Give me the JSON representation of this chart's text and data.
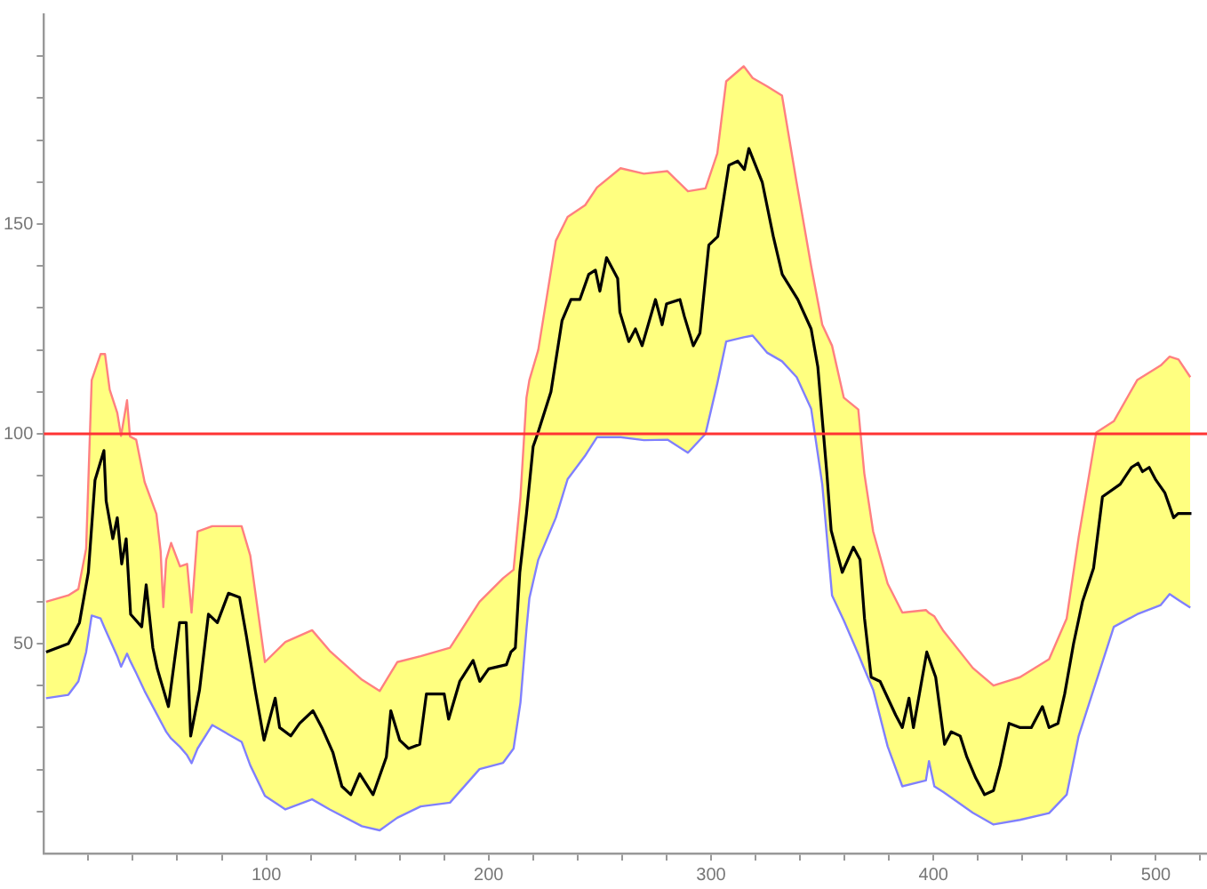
{
  "chart_data": {
    "type": "line",
    "xlim": [
      0,
      523
    ],
    "ylim": [
      0,
      200
    ],
    "xticks": [
      {
        "value": 20,
        "label": null
      },
      {
        "value": 40,
        "label": null
      },
      {
        "value": 60,
        "label": null
      },
      {
        "value": 80,
        "label": null
      },
      100,
      {
        "value": 120,
        "label": null
      },
      {
        "value": 140,
        "label": null
      },
      {
        "value": 160,
        "label": null
      },
      {
        "value": 180,
        "label": null
      },
      200,
      {
        "value": 220,
        "label": null
      },
      {
        "value": 240,
        "label": null
      },
      {
        "value": 260,
        "label": null
      },
      {
        "value": 280,
        "label": null
      },
      300,
      {
        "value": 320,
        "label": null
      },
      {
        "value": 340,
        "label": null
      },
      {
        "value": 360,
        "label": null
      },
      {
        "value": 380,
        "label": null
      },
      400,
      {
        "value": 420,
        "label": null
      },
      {
        "value": 440,
        "label": null
      },
      {
        "value": 460,
        "label": null
      },
      {
        "value": 480,
        "label": null
      },
      500,
      {
        "value": 520,
        "label": null
      }
    ],
    "yticks": [
      {
        "value": 10,
        "label": null
      },
      {
        "value": 20,
        "label": null
      },
      {
        "value": 30,
        "label": null
      },
      {
        "value": 40,
        "label": null
      },
      50,
      {
        "value": 60,
        "label": null
      },
      {
        "value": 70,
        "label": null
      },
      {
        "value": 80,
        "label": null
      },
      {
        "value": 90,
        "label": null
      },
      100,
      {
        "value": 110,
        "label": null
      },
      {
        "value": 120,
        "label": null
      },
      {
        "value": 130,
        "label": null
      },
      {
        "value": 140,
        "label": null
      },
      150,
      {
        "value": 160,
        "label": null
      },
      {
        "value": 170,
        "label": null
      },
      {
        "value": 180,
        "label": null
      },
      {
        "value": 190,
        "label": null
      }
    ],
    "grid": false,
    "legend": false,
    "marker": "none",
    "line_style": "solid",
    "ref_lines": [
      {
        "axis": "y",
        "value": 100,
        "label": null,
        "color": "#ff3333"
      }
    ],
    "series": [
      {
        "type": "area",
        "color": "#ff8080",
        "x": [
          1,
          11,
          15.5,
          19,
          21.5,
          25.5,
          27.5,
          29.6,
          33,
          34.7,
          37.4,
          38.7,
          41.5,
          45.3,
          50.6,
          52.5,
          53.7,
          55,
          57.2,
          61.2,
          64.4,
          66.4,
          69.1,
          75.7,
          88.9,
          92.8,
          99.4,
          108.6,
          120.6,
          128.5,
          143,
          151,
          158.9,
          169.4,
          182.6,
          195.9,
          206.5,
          211.2,
          214.3,
          217,
          218.3,
          222.3,
          230.2,
          235.5,
          243.4,
          248.7,
          259.3,
          269.8,
          280.4,
          289.6,
          297.5,
          302.8,
          306.8,
          314.7,
          318.7,
          325.3,
          331.9,
          338.5,
          345,
          350,
          354.4,
          359.7,
          366.2,
          368.9,
          372.9,
          379.4,
          386,
          396.6,
          398,
          400.4,
          404.5,
          417.7,
          427,
          438.9,
          452,
          459.9,
          465.3,
          473.2,
          481.1,
          491.6,
          502.2,
          506.2,
          510.2,
          515.5
        ],
        "values": [
          60,
          61.5,
          63,
          72.6,
          112.8,
          119,
          119,
          110.5,
          105,
          99.5,
          108,
          99.4,
          98.6,
          88.5,
          80.9,
          72,
          58.7,
          70,
          74,
          68.4,
          69,
          57.4,
          76.7,
          78,
          78,
          71,
          45.6,
          50.4,
          53.2,
          48.3,
          41.4,
          38.7,
          45.6,
          47,
          49,
          60,
          65.6,
          67.6,
          85,
          108.6,
          112.8,
          120,
          146,
          151.7,
          154.5,
          158.7,
          163.3,
          162,
          162.6,
          157.8,
          158.5,
          166.8,
          184,
          187.6,
          184.8,
          182.8,
          180.6,
          159.8,
          140,
          126,
          121,
          108.6,
          105.8,
          90.6,
          76.7,
          64.3,
          57.4,
          58,
          57.3,
          56.5,
          53,
          44.2,
          40,
          42,
          46.3,
          56,
          75.4,
          100.3,
          103,
          112.8,
          116.3,
          118.4,
          117.7,
          113.5
        ]
      },
      {
        "type": "line",
        "color": "#8080ff",
        "x": [
          1,
          11,
          15.5,
          19,
          21.5,
          25.5,
          27.5,
          29.6,
          33,
          34.7,
          37.4,
          38.7,
          41.5,
          45.3,
          50.6,
          52.5,
          53.7,
          55,
          57.2,
          61.2,
          64.4,
          66.4,
          69.1,
          75.7,
          88.9,
          92.8,
          99.4,
          108.6,
          120.6,
          128.5,
          143,
          151,
          158.9,
          169.4,
          182.6,
          195.9,
          206.5,
          211.2,
          214.3,
          217,
          218.3,
          222.3,
          230.2,
          235.5,
          243.4,
          248.7,
          259.3,
          269.8,
          280.4,
          289.6,
          297.5,
          302.8,
          306.8,
          314.7,
          318.7,
          325.3,
          331.9,
          338.5,
          345,
          350,
          354.4,
          359.7,
          366.2,
          368.9,
          372.9,
          379.4,
          386,
          396.6,
          398,
          400.4,
          404.5,
          417.7,
          427,
          438.9,
          452,
          459.9,
          465.3,
          473.2,
          481.1,
          491.6,
          502.2,
          506.2,
          510.2,
          515.5
        ],
        "values": [
          37,
          37.8,
          41,
          48,
          56.7,
          56,
          53.5,
          51,
          47,
          44.5,
          47.6,
          46,
          43,
          38.7,
          33.4,
          31.5,
          30.3,
          29,
          27.4,
          25.4,
          23.4,
          21.5,
          25,
          30.6,
          26.6,
          21,
          13.7,
          10.5,
          12.9,
          10.5,
          6.5,
          5.5,
          8.5,
          11.2,
          12.1,
          20.1,
          21.6,
          25,
          36,
          53.5,
          60.8,
          70,
          80,
          89.2,
          94.8,
          99.2,
          99.2,
          98.5,
          98.6,
          95.5,
          100,
          112,
          122,
          123,
          123.4,
          119.3,
          117.3,
          113.5,
          106,
          88,
          61.5,
          55.5,
          47.5,
          44,
          39,
          25.5,
          16,
          17.4,
          22,
          16,
          14.6,
          9.7,
          6.9,
          8,
          9.6,
          14,
          28,
          41,
          54,
          57,
          59.2,
          61.8,
          60.4,
          58.6
        ]
      },
      {
        "type": "line",
        "color": "#000000",
        "x": [
          1,
          11,
          16,
          20,
          23,
          27,
          28,
          31,
          33,
          35,
          37,
          39,
          44,
          46,
          49,
          51,
          56,
          61,
          64,
          66,
          70,
          74,
          78,
          83,
          88,
          91,
          95,
          99,
          104,
          106,
          111,
          115,
          121,
          125,
          130,
          134,
          138,
          142,
          148,
          154,
          156,
          160,
          164,
          169,
          172,
          180,
          182,
          187,
          193,
          196,
          200,
          208,
          210,
          212,
          214,
          217,
          220,
          222,
          228,
          233,
          237,
          241,
          245,
          248,
          250,
          253,
          258,
          259,
          263,
          266,
          269,
          275,
          278,
          280,
          286,
          288,
          292,
          295,
          299,
          303,
          308,
          312,
          315,
          317,
          323,
          328,
          332,
          339,
          345,
          348,
          352,
          354,
          359,
          364,
          367,
          369,
          372,
          376,
          383,
          386,
          389,
          391,
          394,
          397,
          401,
          405,
          408,
          412,
          415,
          419,
          423,
          427,
          430,
          434,
          439,
          444,
          449,
          452,
          456,
          459,
          463,
          467,
          472,
          476,
          484,
          489,
          492,
          494,
          497,
          500,
          504,
          508,
          510,
          516
        ],
        "values": [
          48,
          50,
          55,
          67,
          89,
          96,
          84,
          75,
          80,
          69,
          75,
          57,
          54,
          64,
          49,
          44,
          35,
          55,
          55,
          28,
          39,
          57,
          55,
          62,
          61,
          52,
          39,
          27,
          37,
          30,
          28,
          31,
          34,
          30,
          24,
          16,
          14,
          19,
          14,
          23,
          34,
          27,
          25,
          26,
          38,
          38,
          32,
          41,
          46,
          41,
          44,
          45,
          48,
          49,
          67,
          81,
          97,
          100,
          110,
          127,
          132,
          132,
          138,
          139,
          134,
          142,
          137,
          129,
          122,
          125,
          121,
          132,
          126,
          131,
          132,
          128,
          121,
          124,
          145,
          147,
          164,
          165,
          163,
          168,
          160,
          147,
          138,
          132,
          125,
          116,
          91,
          77,
          67,
          73,
          70,
          56,
          42,
          41,
          33,
          30,
          37,
          30,
          39,
          48,
          42,
          26,
          29,
          28,
          23,
          18,
          14,
          15,
          21,
          31,
          30,
          30,
          35,
          30,
          31,
          38,
          50,
          60,
          68,
          85,
          88,
          92,
          93,
          91,
          92,
          89,
          86,
          80,
          81,
          81
        ]
      }
    ]
  }
}
